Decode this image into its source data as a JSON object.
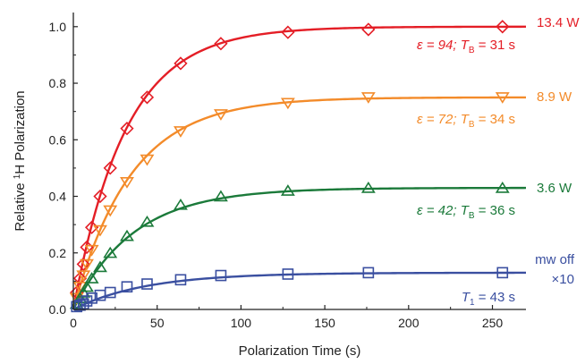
{
  "chart_data": {
    "type": "scatter",
    "xlabel": "Polarization Time (s)",
    "ylabel_parts": [
      "Relative ",
      "1",
      "H Polarization"
    ],
    "xlim": [
      0,
      270
    ],
    "ylim": [
      0,
      1.05
    ],
    "x_ticks": [
      0,
      50,
      100,
      150,
      200,
      250
    ],
    "x_tick_labels": [
      "0",
      "50",
      "100",
      "150",
      "200",
      "250"
    ],
    "y_ticks": [
      0,
      0.2,
      0.4,
      0.6,
      0.8,
      1.0
    ],
    "y_tick_labels": [
      "0.0",
      "0.2",
      "0.4",
      "0.6",
      "0.8",
      "1.0"
    ],
    "grid": false,
    "series": [
      {
        "name": "13.4 W",
        "color": "#e41e26",
        "marker": "diamond",
        "fit": {
          "A": 1.0,
          "tau": 31
        },
        "annotation": {
          "eps": "ε = 94; ",
          "T": "T",
          "sub": "B",
          "rest": " = 31 s"
        },
        "x": [
          2,
          4,
          6,
          8,
          11,
          16,
          22,
          32,
          44,
          64,
          88,
          128,
          176,
          256
        ],
        "y": [
          0.06,
          0.11,
          0.16,
          0.22,
          0.29,
          0.4,
          0.5,
          0.64,
          0.75,
          0.87,
          0.94,
          0.98,
          0.99,
          1.0
        ]
      },
      {
        "name": "8.9 W",
        "color": "#f38b2a",
        "marker": "triangle-down",
        "fit": {
          "A": 0.75,
          "tau": 34
        },
        "annotation": {
          "eps": "ε = 72; ",
          "T": "T",
          "sub": "B",
          "rest": " = 34 s"
        },
        "x": [
          2,
          4,
          6,
          8,
          11,
          16,
          22,
          32,
          44,
          64,
          88,
          128,
          176,
          256
        ],
        "y": [
          0.04,
          0.08,
          0.12,
          0.16,
          0.21,
          0.28,
          0.35,
          0.45,
          0.53,
          0.63,
          0.69,
          0.73,
          0.75,
          0.75
        ]
      },
      {
        "name": "3.6 W",
        "color": "#1b7a3a",
        "marker": "triangle-up",
        "fit": {
          "A": 0.43,
          "tau": 36
        },
        "annotation": {
          "eps": "ε = 42; ",
          "T": "T",
          "sub": "B",
          "rest": " = 36 s"
        },
        "x": [
          2,
          4,
          6,
          8,
          11,
          16,
          22,
          32,
          44,
          64,
          88,
          128,
          176,
          256
        ],
        "y": [
          0.02,
          0.04,
          0.06,
          0.08,
          0.11,
          0.15,
          0.2,
          0.26,
          0.31,
          0.37,
          0.4,
          0.42,
          0.43,
          0.43
        ]
      },
      {
        "name_lines": [
          "mw off",
          "×10"
        ],
        "color": "#3a4fa0",
        "marker": "square",
        "fit": {
          "A": 0.13,
          "tau": 43
        },
        "annotation": {
          "eps": "",
          "T": "T",
          "sub": "1",
          "rest": " = 43 s"
        },
        "x": [
          2,
          4,
          6,
          8,
          11,
          16,
          22,
          32,
          44,
          64,
          88,
          128,
          176,
          256
        ],
        "y": [
          0.01,
          0.015,
          0.02,
          0.03,
          0.04,
          0.05,
          0.06,
          0.08,
          0.09,
          0.105,
          0.12,
          0.125,
          0.13,
          0.13
        ]
      }
    ]
  }
}
